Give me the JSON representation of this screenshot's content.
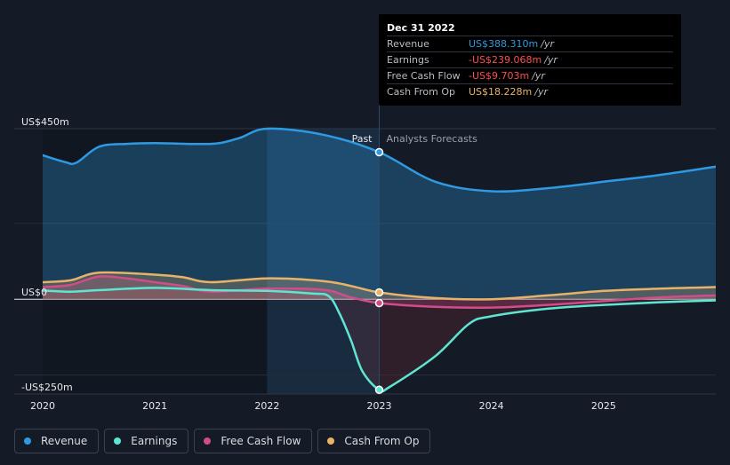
{
  "chart_data": {
    "type": "line",
    "ylim": [
      -250,
      450
    ],
    "y_ticks": [
      {
        "value": 450,
        "label": "US$450m"
      },
      {
        "value": 0,
        "label": "US$0"
      },
      {
        "value": -250,
        "label": "-US$250m"
      }
    ],
    "x_ticks": [
      2020,
      2021,
      2022,
      2023,
      2024,
      2025
    ],
    "xlim": [
      2020,
      2026
    ],
    "past_end": 2023,
    "past_label": "Past",
    "forecast_label": "Analysts Forecasts",
    "series": [
      {
        "name": "Revenue",
        "color": "#2f9ae3",
        "points": [
          [
            2020.0,
            380
          ],
          [
            2020.2,
            362
          ],
          [
            2020.3,
            360
          ],
          [
            2020.5,
            402
          ],
          [
            2020.75,
            410
          ],
          [
            2021.0,
            412
          ],
          [
            2021.5,
            410
          ],
          [
            2021.75,
            425
          ],
          [
            2022.0,
            450
          ],
          [
            2022.5,
            434
          ],
          [
            2023.0,
            388
          ],
          [
            2023.5,
            310
          ],
          [
            2024.0,
            285
          ],
          [
            2024.5,
            293
          ],
          [
            2025.0,
            310
          ],
          [
            2025.5,
            328
          ],
          [
            2026.0,
            350
          ]
        ]
      },
      {
        "name": "Earnings",
        "color": "#5ee6d2",
        "points": [
          [
            2020.0,
            23
          ],
          [
            2020.25,
            20
          ],
          [
            2020.5,
            24
          ],
          [
            2021.0,
            30
          ],
          [
            2021.5,
            24
          ],
          [
            2022.0,
            22
          ],
          [
            2022.4,
            15
          ],
          [
            2022.55,
            8
          ],
          [
            2022.65,
            -40
          ],
          [
            2022.75,
            -110
          ],
          [
            2022.85,
            -190
          ],
          [
            2023.0,
            -239
          ],
          [
            2023.1,
            -230
          ],
          [
            2023.5,
            -150
          ],
          [
            2023.8,
            -65
          ],
          [
            2024.0,
            -45
          ],
          [
            2024.5,
            -25
          ],
          [
            2025.0,
            -15
          ],
          [
            2025.5,
            -8
          ],
          [
            2026.0,
            -3
          ]
        ]
      },
      {
        "name": "Free Cash Flow",
        "color": "#d14d8a",
        "points": [
          [
            2020.0,
            32
          ],
          [
            2020.25,
            38
          ],
          [
            2020.5,
            60
          ],
          [
            2020.75,
            55
          ],
          [
            2021.0,
            45
          ],
          [
            2021.25,
            35
          ],
          [
            2021.5,
            20
          ],
          [
            2022.0,
            28
          ],
          [
            2022.5,
            25
          ],
          [
            2022.75,
            5
          ],
          [
            2023.0,
            -10
          ],
          [
            2023.5,
            -20
          ],
          [
            2024.0,
            -22
          ],
          [
            2024.5,
            -15
          ],
          [
            2025.0,
            -5
          ],
          [
            2025.5,
            5
          ],
          [
            2026.0,
            10
          ]
        ]
      },
      {
        "name": "Cash From Op",
        "color": "#e8b368",
        "points": [
          [
            2020.0,
            45
          ],
          [
            2020.25,
            50
          ],
          [
            2020.5,
            70
          ],
          [
            2021.0,
            65
          ],
          [
            2021.25,
            58
          ],
          [
            2021.5,
            45
          ],
          [
            2022.0,
            55
          ],
          [
            2022.5,
            48
          ],
          [
            2022.75,
            35
          ],
          [
            2023.0,
            18
          ],
          [
            2023.5,
            3
          ],
          [
            2024.0,
            0
          ],
          [
            2024.5,
            10
          ],
          [
            2025.0,
            22
          ],
          [
            2025.5,
            28
          ],
          [
            2026.0,
            32
          ]
        ]
      }
    ]
  },
  "tooltip": {
    "date": "Dec 31 2022",
    "rows": [
      {
        "label": "Revenue",
        "value": "US$388.310m",
        "unit": "/yr",
        "color": "#2f9ae3"
      },
      {
        "label": "Earnings",
        "value": "-US$239.068m",
        "unit": "/yr",
        "color": "#ff4d4d"
      },
      {
        "label": "Free Cash Flow",
        "value": "-US$9.703m",
        "unit": "/yr",
        "color": "#ff4d4d"
      },
      {
        "label": "Cash From Op",
        "value": "US$18.228m",
        "unit": "/yr",
        "color": "#e8b368"
      }
    ]
  },
  "legend": [
    {
      "label": "Revenue",
      "color": "#2f9ae3"
    },
    {
      "label": "Earnings",
      "color": "#5ee6d2"
    },
    {
      "label": "Free Cash Flow",
      "color": "#d14d8a"
    },
    {
      "label": "Cash From Op",
      "color": "#e8b368"
    }
  ]
}
